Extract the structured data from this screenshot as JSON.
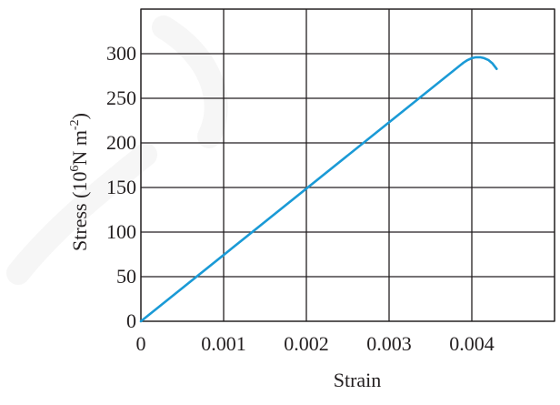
{
  "chart_data": {
    "type": "line",
    "xlabel": "Strain",
    "ylabel_main": "Stress (10",
    "ylabel_exp": "6",
    "ylabel_unit": "N m",
    "ylabel_unit_exp": "-2",
    "ylabel_close": ")",
    "xlim": [
      0,
      0.005
    ],
    "ylim": [
      0,
      350
    ],
    "x_ticks": [
      0,
      0.001,
      0.002,
      0.003,
      0.004
    ],
    "x_tick_labels": [
      "0",
      "0.001",
      "0.002",
      "0.003",
      "0.004"
    ],
    "y_ticks": [
      0,
      50,
      100,
      150,
      200,
      250,
      300
    ],
    "y_tick_labels": [
      "0",
      "50",
      "100",
      "150",
      "200",
      "250",
      "300"
    ],
    "x_grid": [
      0,
      0.001,
      0.002,
      0.003,
      0.004,
      0.005
    ],
    "y_grid": [
      0,
      50,
      100,
      150,
      200,
      250,
      300,
      350
    ],
    "grid": true,
    "series": [
      {
        "color": "#1a9ad6",
        "x": [
          0,
          0.0039,
          0.00395,
          0.004,
          0.00405,
          0.0041,
          0.00415,
          0.0042,
          0.00425,
          0.0043
        ],
        "y": [
          0,
          290,
          293,
          295,
          296,
          296,
          295,
          293,
          289,
          283
        ]
      }
    ]
  }
}
